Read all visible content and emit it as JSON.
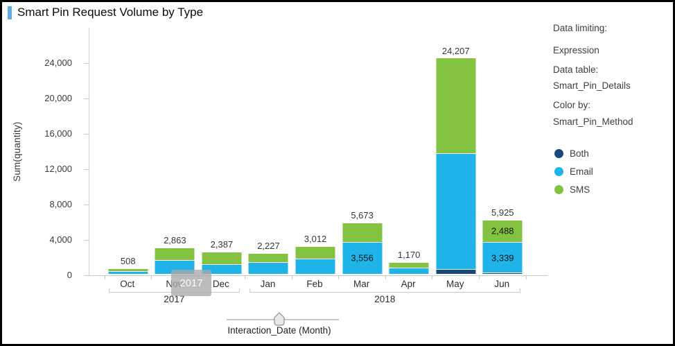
{
  "header": {
    "title": "Smart Pin Request Volume by Type",
    "accent_color": "#5fade3"
  },
  "chart_data": {
    "type": "bar",
    "stacked": true,
    "title": "Smart Pin Request Volume by Type",
    "ylabel": "Sum(quantity)",
    "xlabel": "Interaction_Date (Month)",
    "ylim": [
      0,
      26000
    ],
    "grid": false,
    "legend_position": "right",
    "yticks": [
      0,
      4000,
      8000,
      12000,
      16000,
      20000,
      24000
    ],
    "ytick_labels": [
      "0",
      "4,000",
      "8,000",
      "12,000",
      "16,000",
      "20,000",
      "24,000"
    ],
    "categories": [
      "Oct",
      "Nov",
      "Dec",
      "Jan",
      "Feb",
      "Mar",
      "Apr",
      "May",
      "Jun"
    ],
    "year_groups": [
      {
        "label": "2017",
        "span": 3
      },
      {
        "label": "2018",
        "span": 6
      }
    ],
    "series": [
      {
        "name": "Both",
        "color": "#164a7f",
        "values": [
          0,
          0,
          0,
          0,
          0,
          0,
          0,
          470,
          98
        ],
        "segment_labels": [
          null,
          null,
          null,
          null,
          null,
          null,
          null,
          null,
          null
        ]
      },
      {
        "name": "Email",
        "color": "#1fb3e8",
        "values": [
          230,
          1490,
          1020,
          1270,
          1660,
          3556,
          620,
          13050,
          3339
        ],
        "segment_labels": [
          null,
          null,
          null,
          null,
          null,
          "3,556",
          null,
          null,
          "3,339"
        ]
      },
      {
        "name": "SMS",
        "color": "#84c341",
        "values": [
          278,
          1373,
          1367,
          957,
          1352,
          2117,
          550,
          10687,
          2488
        ],
        "segment_labels": [
          null,
          null,
          null,
          null,
          null,
          null,
          null,
          null,
          "2,488"
        ]
      }
    ],
    "totals": [
      508,
      2863,
      2387,
      2227,
      3012,
      5673,
      1170,
      24207,
      5925
    ],
    "total_labels": [
      "508",
      "2,863",
      "2,387",
      "2,227",
      "3,012",
      "5,673",
      "1,170",
      "24,207",
      "5,925"
    ]
  },
  "slider": {
    "label": "Interaction_Date (Month)",
    "tooltip": "2017"
  },
  "legend_panel": {
    "data_limiting_label": "Data limiting:",
    "data_limiting_value": "Expression",
    "data_table_label": "Data table:",
    "data_table_value": "Smart_Pin_Details",
    "color_by_label": "Color by:",
    "color_by_value": "Smart_Pin_Method",
    "items": [
      {
        "label": "Both",
        "color": "#164a7f"
      },
      {
        "label": "Email",
        "color": "#1fb3e8"
      },
      {
        "label": "SMS",
        "color": "#84c341"
      }
    ]
  }
}
